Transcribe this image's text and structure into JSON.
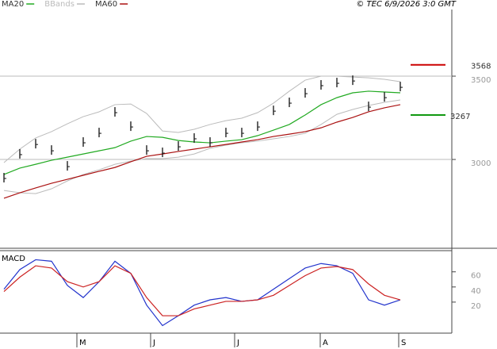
{
  "chart_data": [
    {
      "type": "line",
      "legend": [
        {
          "name": "MA20",
          "color": "#22aa22"
        },
        {
          "name": "BBands",
          "color": "#bbbbbb"
        },
        {
          "name": "MA60",
          "color": "#aa1111"
        }
      ],
      "credit": "© TEC 6/9/2026 3:0 GMT",
      "x": [
        0,
        1,
        2,
        3,
        4,
        5,
        6,
        7,
        8,
        9,
        10,
        11,
        12,
        13,
        14,
        15,
        16,
        17,
        18,
        19,
        20,
        21,
        22,
        23,
        24,
        25
      ],
      "xlim": [
        -0.25,
        28.25
      ],
      "ylim": [
        2467,
        3900
      ],
      "yticks": [
        3500,
        3000
      ],
      "grid": true,
      "price": {
        "color": "#111111",
        "values": [
          2886,
          3029,
          3090,
          3052,
          2957,
          3100,
          3157,
          3281,
          3195,
          3052,
          3038,
          3076,
          3124,
          3100,
          3157,
          3157,
          3195,
          3290,
          3338,
          3395,
          3443,
          3457,
          3471,
          3314,
          3371,
          3433
        ]
      },
      "series": [
        {
          "name": "MA20",
          "color": "#22aa22",
          "values": [
            2910,
            2948,
            2971,
            2995,
            3014,
            3033,
            3052,
            3071,
            3110,
            3138,
            3133,
            3114,
            3105,
            3100,
            3110,
            3119,
            3143,
            3176,
            3210,
            3267,
            3329,
            3371,
            3400,
            3410,
            3405,
            3400
          ]
        },
        {
          "name": "MA60",
          "color": "#aa1111",
          "values": [
            2767,
            2800,
            2829,
            2857,
            2881,
            2905,
            2929,
            2952,
            2986,
            3019,
            3033,
            3048,
            3062,
            3076,
            3090,
            3105,
            3119,
            3138,
            3152,
            3167,
            3190,
            3224,
            3252,
            3286,
            3310,
            3329
          ]
        }
      ],
      "bands": {
        "name": "BBands",
        "color": "#bbbbbb",
        "upper": [
          2981,
          3062,
          3129,
          3167,
          3214,
          3257,
          3286,
          3329,
          3333,
          3276,
          3171,
          3162,
          3181,
          3210,
          3233,
          3248,
          3281,
          3338,
          3410,
          3476,
          3500,
          3500,
          3495,
          3490,
          3481,
          3467
        ],
        "lower": [
          2814,
          2800,
          2795,
          2824,
          2871,
          2910,
          2938,
          2971,
          2990,
          3005,
          3005,
          3014,
          3033,
          3067,
          3086,
          3100,
          3110,
          3124,
          3138,
          3157,
          3210,
          3271,
          3300,
          3324,
          3343,
          3357
        ]
      },
      "annotations": [
        {
          "value": 3568,
          "color": "#cc0000"
        },
        {
          "value": 3267,
          "color": "#119911"
        }
      ]
    },
    {
      "type": "line",
      "title": "MACD",
      "x": [
        0,
        1,
        2,
        3,
        4,
        5,
        6,
        7,
        8,
        9,
        10,
        11,
        12,
        13,
        14,
        15,
        16,
        17,
        18,
        19,
        20,
        21,
        22,
        23,
        24,
        25
      ],
      "xlim": [
        -0.25,
        28.25
      ],
      "xticks": [
        {
          "value": 4.6,
          "label": "M"
        },
        {
          "value": 9.25,
          "label": "J"
        },
        {
          "value": 14.55,
          "label": "J"
        },
        {
          "value": 19.95,
          "label": "A"
        },
        {
          "value": 24.9,
          "label": "S"
        }
      ],
      "ylim": [
        -21,
        88
      ],
      "yticks": [
        60,
        40,
        20
      ],
      "series": [
        {
          "color": "#2233cc",
          "values": [
            37,
            63,
            76,
            74,
            42,
            26,
            47,
            74,
            58,
            16,
            -11,
            2,
            16,
            23,
            26,
            21,
            23,
            37,
            51,
            65,
            71,
            68,
            58,
            23,
            16,
            23
          ]
        },
        {
          "color": "#cc2222",
          "values": [
            34,
            53,
            68,
            65,
            47,
            40,
            47,
            68,
            58,
            26,
            2,
            2,
            11,
            16,
            21,
            21,
            23,
            29,
            42,
            55,
            65,
            67,
            63,
            44,
            29,
            23
          ]
        }
      ]
    }
  ]
}
